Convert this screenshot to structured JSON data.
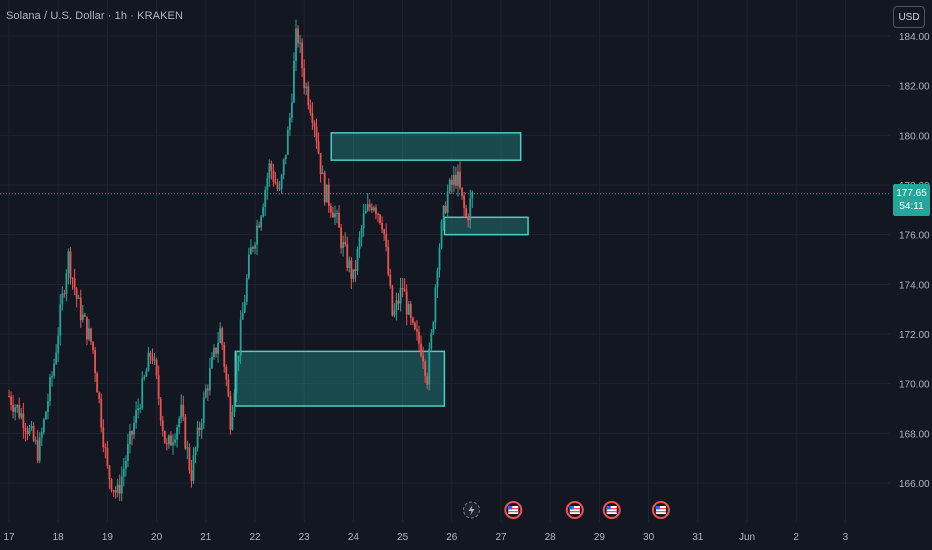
{
  "header": {
    "symbol_title": "Solana / U.S. Dollar · 1h · KRAKEN",
    "currency_label": "USD"
  },
  "price_tag": {
    "price": "177.65",
    "countdown": "54:11"
  },
  "colors": {
    "background": "#131722",
    "up": "#26a69a",
    "down": "#ef5350",
    "zone_border": "#4ecdc4",
    "zone_fill": "rgba(38,166,154,0.35)",
    "grid": "#1f2330",
    "axis_text": "#b2b5be"
  },
  "chart_data": {
    "type": "candlestick",
    "x_tick_labels": [
      "17",
      "18",
      "19",
      "20",
      "21",
      "22",
      "23",
      "24",
      "25",
      "26",
      "27",
      "28",
      "29",
      "30",
      "31",
      "Jun",
      "2",
      "3"
    ],
    "y_tick_labels": [
      "166.00",
      "168.00",
      "170.00",
      "172.00",
      "174.00",
      "176.00",
      "178.00",
      "180.00",
      "182.00",
      "184.00"
    ],
    "y_range": [
      164.8,
      185.2
    ],
    "last_price": 177.65,
    "close_path": [
      {
        "x": 17.0,
        "y": 169.5
      },
      {
        "x": 17.3,
        "y": 168.6
      },
      {
        "x": 17.6,
        "y": 167.2
      },
      {
        "x": 17.9,
        "y": 170.6
      },
      {
        "x": 18.2,
        "y": 175.2
      },
      {
        "x": 18.4,
        "y": 173.2
      },
      {
        "x": 18.7,
        "y": 171.5
      },
      {
        "x": 19.0,
        "y": 166.5
      },
      {
        "x": 19.2,
        "y": 165.5
      },
      {
        "x": 19.5,
        "y": 168.0
      },
      {
        "x": 19.9,
        "y": 171.4
      },
      {
        "x": 20.2,
        "y": 167.3
      },
      {
        "x": 20.5,
        "y": 168.8
      },
      {
        "x": 20.7,
        "y": 166.3
      },
      {
        "x": 21.0,
        "y": 169.7
      },
      {
        "x": 21.3,
        "y": 172.2
      },
      {
        "x": 21.5,
        "y": 168.6
      },
      {
        "x": 21.7,
        "y": 172.0
      },
      {
        "x": 21.9,
        "y": 175.2
      },
      {
        "x": 22.1,
        "y": 176.8
      },
      {
        "x": 22.3,
        "y": 178.8
      },
      {
        "x": 22.5,
        "y": 177.6
      },
      {
        "x": 22.7,
        "y": 180.5
      },
      {
        "x": 22.85,
        "y": 184.3
      },
      {
        "x": 23.0,
        "y": 182.2
      },
      {
        "x": 23.2,
        "y": 180.7
      },
      {
        "x": 23.4,
        "y": 177.8
      },
      {
        "x": 23.6,
        "y": 177.0
      },
      {
        "x": 23.8,
        "y": 175.4
      },
      {
        "x": 24.0,
        "y": 174.2
      },
      {
        "x": 24.2,
        "y": 176.6
      },
      {
        "x": 24.4,
        "y": 177.4
      },
      {
        "x": 24.6,
        "y": 176.5
      },
      {
        "x": 24.8,
        "y": 172.6
      },
      {
        "x": 25.0,
        "y": 173.9
      },
      {
        "x": 25.2,
        "y": 172.1
      },
      {
        "x": 25.4,
        "y": 171.4
      },
      {
        "x": 25.5,
        "y": 170.3
      },
      {
        "x": 25.6,
        "y": 172.1
      },
      {
        "x": 25.7,
        "y": 174.9
      },
      {
        "x": 25.8,
        "y": 176.3
      },
      {
        "x": 25.9,
        "y": 177.6
      },
      {
        "x": 26.1,
        "y": 178.4
      },
      {
        "x": 26.2,
        "y": 177.4
      },
      {
        "x": 26.3,
        "y": 176.6
      },
      {
        "x": 26.4,
        "y": 177.5
      },
      {
        "x": 26.45,
        "y": 177.65
      }
    ],
    "zones": [
      {
        "x_start": 23.55,
        "x_end": 27.4,
        "y_low": 179.0,
        "y_high": 180.1
      },
      {
        "x_start": 25.85,
        "x_end": 27.55,
        "y_low": 176.0,
        "y_high": 176.7
      },
      {
        "x_start": 21.6,
        "x_end": 25.85,
        "y_low": 169.1,
        "y_high": 171.3
      }
    ],
    "events": [
      {
        "x": 26.4,
        "icon": "lightning-icon"
      },
      {
        "x": 27.25,
        "icon": "us-flag-icon"
      },
      {
        "x": 28.5,
        "icon": "us-flag-icon"
      },
      {
        "x": 29.25,
        "icon": "us-flag-icon"
      },
      {
        "x": 30.25,
        "icon": "us-flag-icon"
      }
    ]
  }
}
